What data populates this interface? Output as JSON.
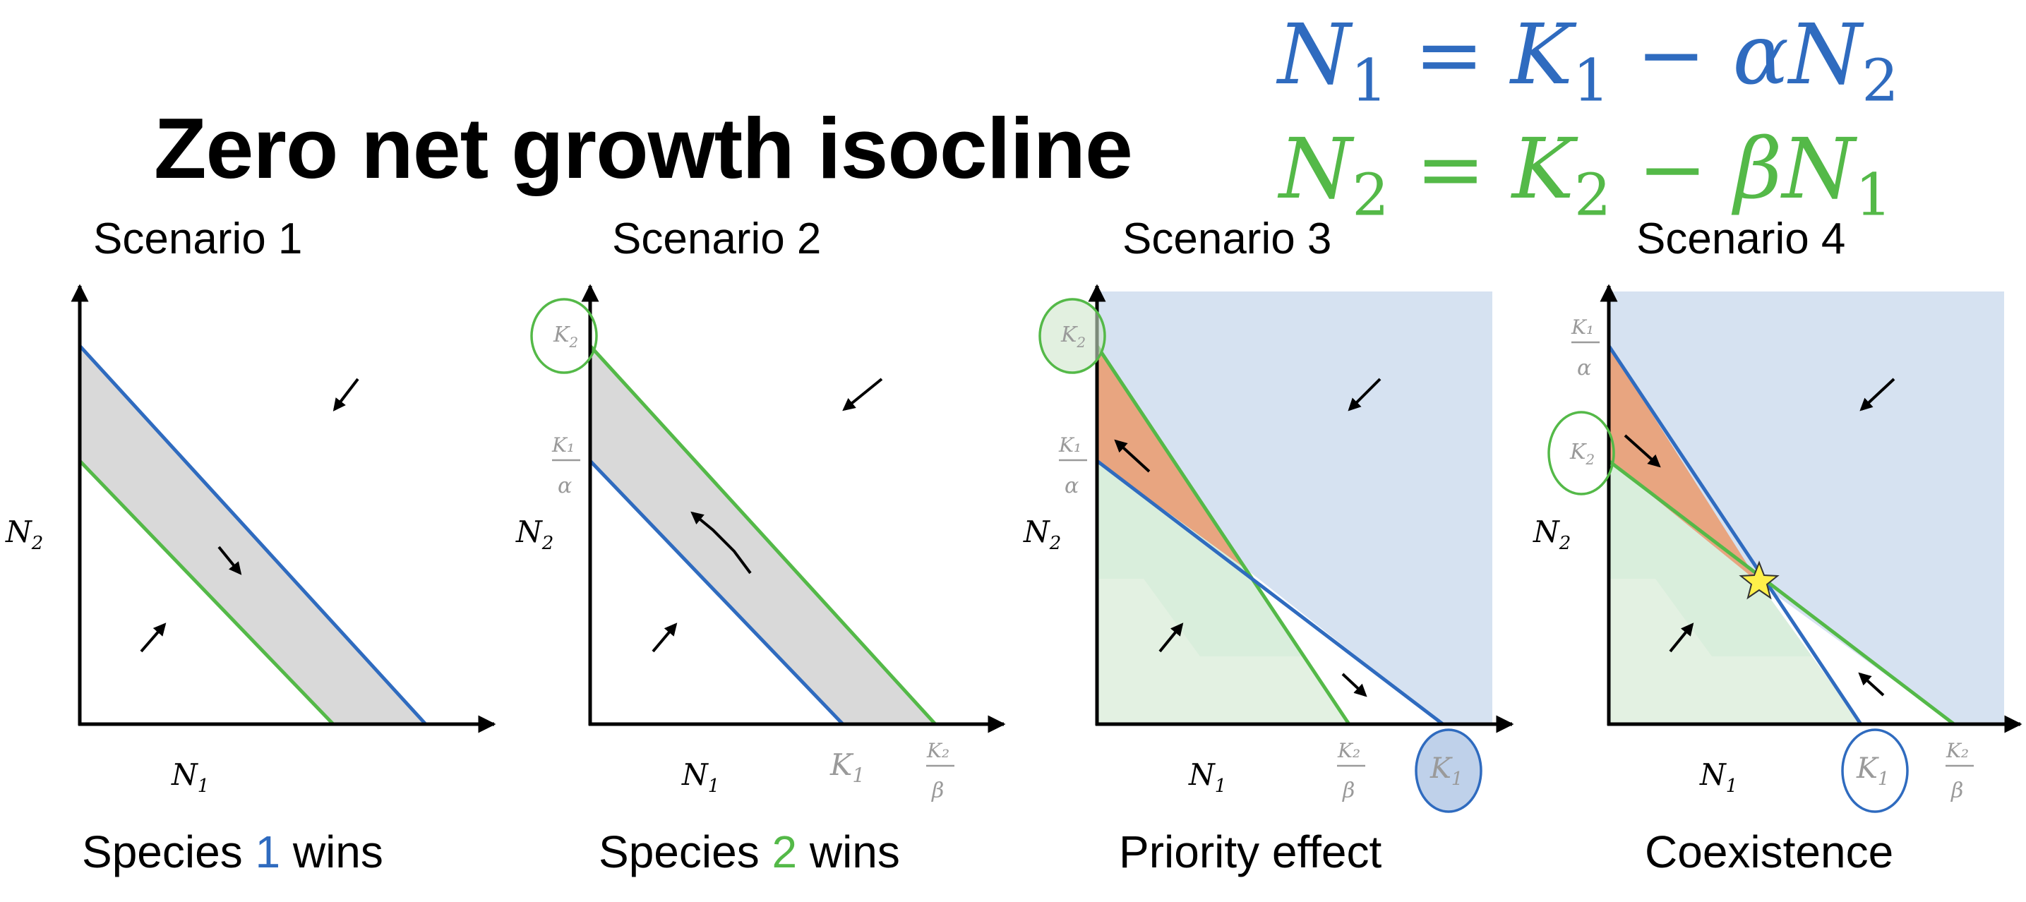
{
  "title": "Zero net growth isocline",
  "equations": {
    "eq1": {
      "lhs": "N",
      "lhs_sub": "1",
      "k": "K",
      "k_sub": "1",
      "op": " − ",
      "coef": "α",
      "var": "N",
      "var_sub": "2",
      "color": "#2F6BBF"
    },
    "eq2": {
      "lhs": "N",
      "lhs_sub": "2",
      "k": "K",
      "k_sub": "2",
      "op": " − ",
      "coef": "β",
      "var": "N",
      "var_sub": "1",
      "color": "#54B948"
    }
  },
  "axis": {
    "x_label": "N",
    "x_sub": "1",
    "y_label": "N",
    "y_sub": "2"
  },
  "ticks": {
    "K1": "K",
    "K1_sub": "1",
    "K2": "K",
    "K2_sub": "2",
    "K1_over_alpha_num": "K₁",
    "K1_over_alpha_den": "α",
    "K2_over_beta_num": "K₂",
    "K2_over_beta_den": "β"
  },
  "scenarios": [
    {
      "title": "Scenario 1",
      "outcome_pre": "Species ",
      "outcome_num": "1",
      "outcome_post": " wins",
      "outcome_color": "#2F6BBF"
    },
    {
      "title": "Scenario 2",
      "outcome_pre": "Species ",
      "outcome_num": "2",
      "outcome_post": " wins",
      "outcome_color": "#54B948"
    },
    {
      "title": "Scenario 3",
      "outcome_pre": "Priority effect",
      "outcome_num": "",
      "outcome_post": "",
      "outcome_color": "#000000"
    },
    {
      "title": "Scenario 4",
      "outcome_pre": "Coexistence",
      "outcome_num": "",
      "outcome_post": "",
      "outcome_color": "#000000"
    }
  ],
  "colors": {
    "blue_isocline": "#2F6BBF",
    "green_isocline": "#54B948",
    "gray_region": "#D9D9D9",
    "blue_region": "#D6E2F1",
    "green_region": "#D9EEDC",
    "orange_region": "#E8A580",
    "star": "#FFF04A"
  }
}
